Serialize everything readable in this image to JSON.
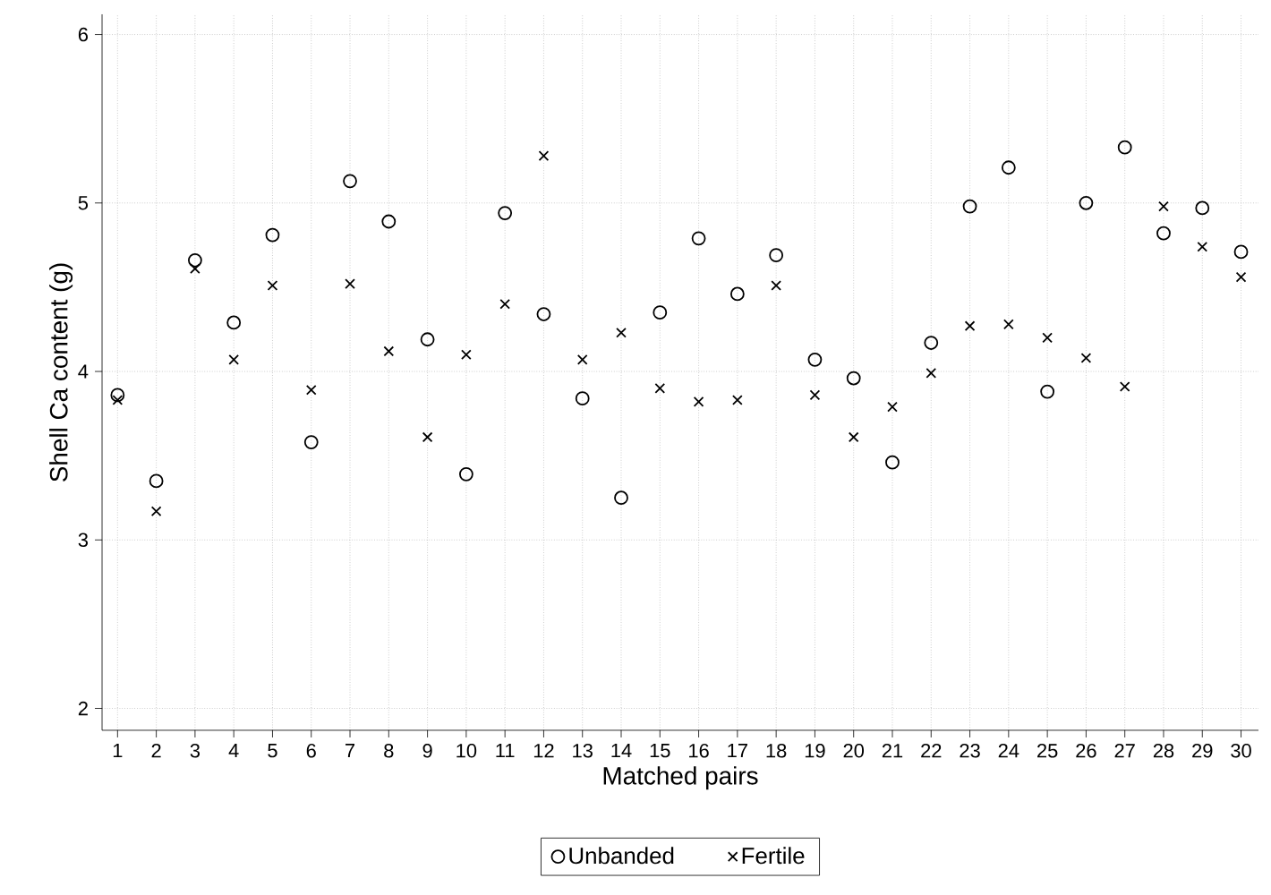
{
  "chart_data": {
    "type": "scatter",
    "xlabel": "Matched pairs",
    "ylabel": "Shell Ca content (g)",
    "x": [
      1,
      2,
      3,
      4,
      5,
      6,
      7,
      8,
      9,
      10,
      11,
      12,
      13,
      14,
      15,
      16,
      17,
      18,
      19,
      20,
      21,
      22,
      23,
      24,
      25,
      26,
      27,
      28,
      29,
      30
    ],
    "series": [
      {
        "name": "Unbanded",
        "color": "#000000",
        "marker": "circle",
        "values": [
          3.86,
          3.35,
          4.66,
          4.29,
          4.81,
          3.58,
          5.13,
          4.89,
          4.19,
          3.39,
          4.94,
          4.34,
          3.84,
          3.25,
          4.35,
          4.79,
          4.46,
          4.69,
          4.07,
          3.96,
          3.46,
          4.17,
          4.98,
          5.21,
          3.88,
          5.0,
          5.33,
          4.82,
          4.97,
          4.71
        ]
      },
      {
        "name": "Fertile",
        "color": "#000000",
        "marker": "cross",
        "values": [
          3.83,
          3.17,
          4.61,
          4.07,
          4.51,
          3.89,
          4.52,
          4.12,
          3.61,
          4.1,
          4.4,
          5.28,
          4.07,
          4.23,
          3.9,
          3.82,
          3.83,
          4.51,
          3.86,
          3.61,
          3.79,
          3.99,
          4.27,
          4.28,
          4.2,
          4.08,
          3.91,
          4.98,
          4.74,
          4.56
        ]
      }
    ],
    "xlim": [
      0.6,
      30.45
    ],
    "xticks": [
      1,
      2,
      3,
      4,
      5,
      6,
      7,
      8,
      9,
      10,
      11,
      12,
      13,
      14,
      15,
      16,
      17,
      18,
      19,
      20,
      21,
      22,
      23,
      24,
      25,
      26,
      27,
      28,
      29,
      30
    ],
    "ylim": [
      1.87,
      6.12
    ],
    "yticks": [
      2,
      3,
      4,
      5,
      6
    ],
    "grid": true,
    "legend": "bottom"
  }
}
